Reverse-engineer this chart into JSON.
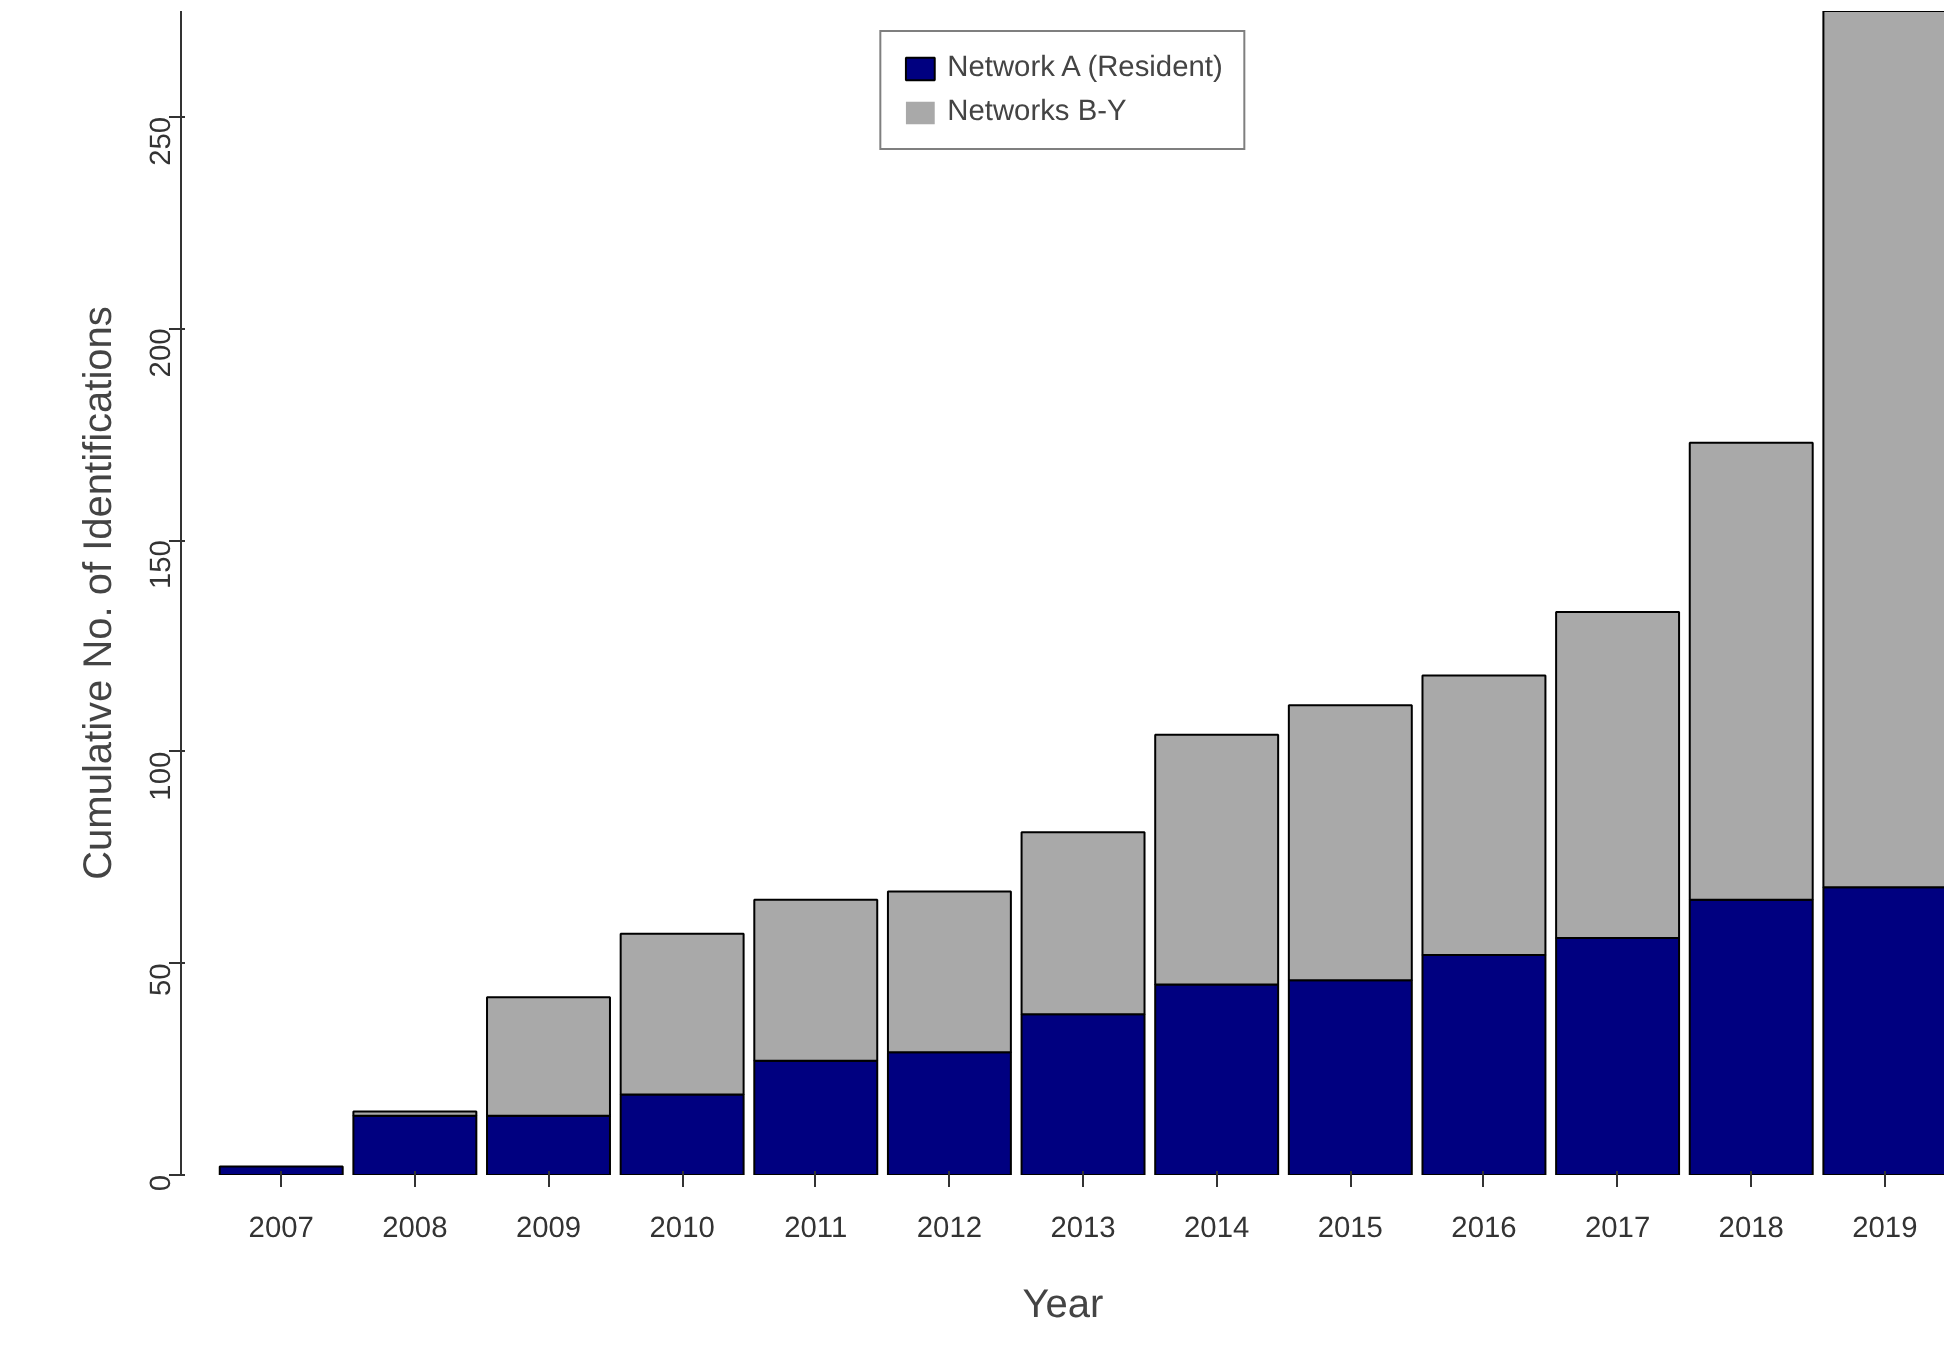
{
  "chart_data": {
    "type": "bar",
    "stacked": true,
    "xlabel": "Year",
    "ylabel": "Cumulative No. of Identifications",
    "categories": [
      "2007",
      "2008",
      "2009",
      "2010",
      "2011",
      "2012",
      "2013",
      "2014",
      "2015",
      "2016",
      "2017",
      "2018",
      "2019"
    ],
    "series": [
      {
        "name": "Network A (Resident)",
        "color": "#000080",
        "values": [
          2,
          14,
          14,
          19,
          27,
          29,
          38,
          45,
          46,
          52,
          56,
          65,
          68
        ]
      },
      {
        "name": "Networks B-Y",
        "color": "#a9a9a9",
        "values": [
          0,
          1,
          28,
          38,
          38,
          38,
          43,
          59,
          65,
          66,
          77,
          108,
          207
        ]
      }
    ],
    "ylim": [
      0,
      275
    ],
    "yticks": [
      0,
      50,
      100,
      150,
      200,
      250
    ],
    "grid": false,
    "legend": "top"
  }
}
